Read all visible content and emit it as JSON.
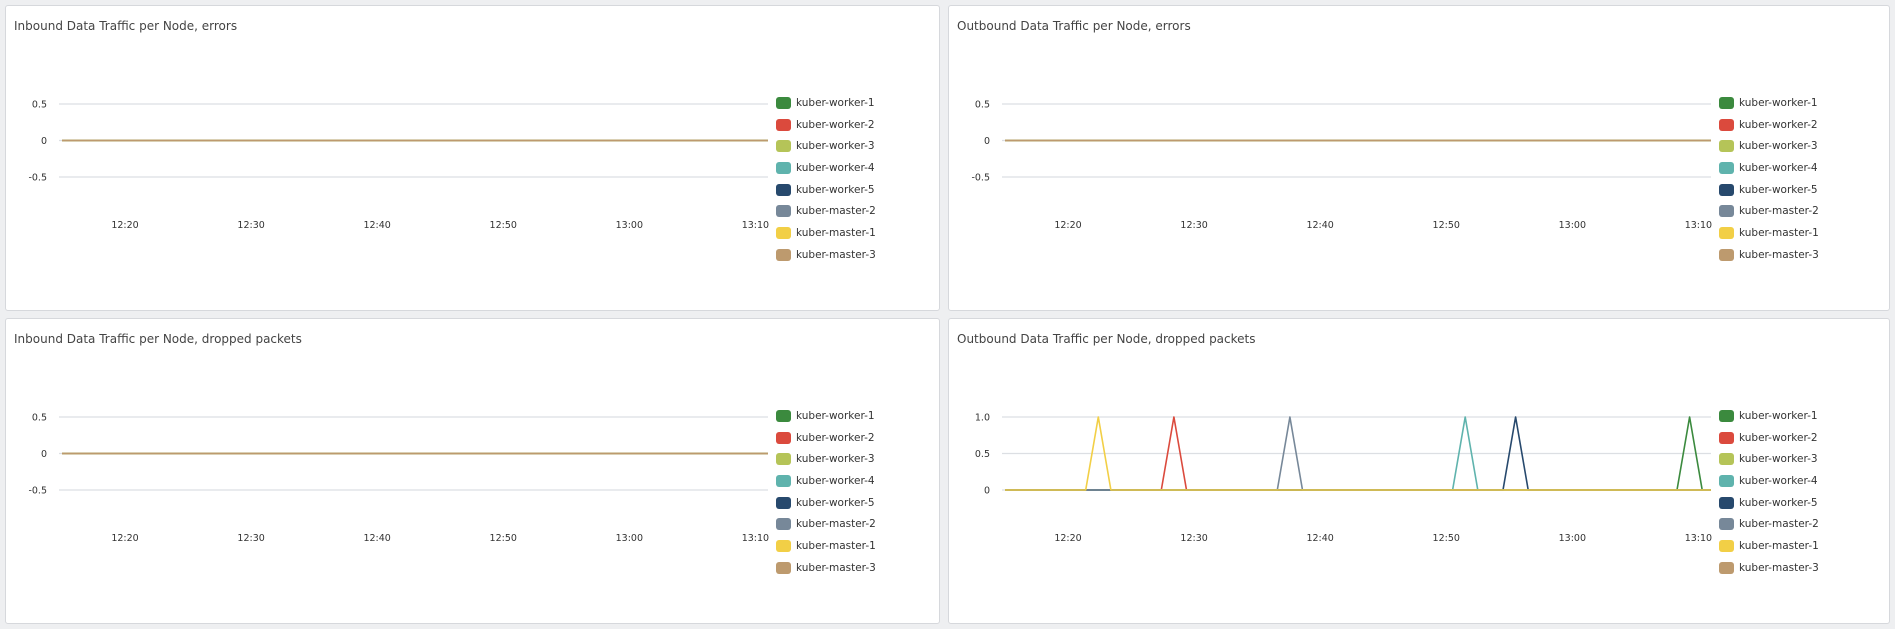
{
  "legend_colors": {
    "kuber-worker-1": "#3b8a3e",
    "kuber-worker-2": "#db4a3d",
    "kuber-worker-3": "#b5c458",
    "kuber-worker-4": "#5fb3ad",
    "kuber-worker-5": "#27496d",
    "kuber-master-2": "#778899",
    "kuber-master-1": "#f2cf46",
    "kuber-master-3": "#bd9a6e"
  },
  "chart_data": [
    {
      "type": "line",
      "title": "Inbound Data Traffic per Node, errors",
      "x_ticks": [
        "12:20",
        "12:30",
        "12:40",
        "12:50",
        "13:00",
        "13:10"
      ],
      "x_tick_minutes": [
        20,
        30,
        40,
        50,
        60,
        70
      ],
      "x_range_minutes": [
        15,
        71
      ],
      "y_ticks": [
        "0.5",
        "0",
        "-0.5"
      ],
      "y_tick_values": [
        0.5,
        0,
        -0.5
      ],
      "ylim": [
        -0.5,
        0.5
      ],
      "grid": true,
      "legend_position": "right",
      "series": [
        {
          "name": "kuber-worker-1",
          "x": [
            15,
            71
          ],
          "values": [
            0,
            0
          ]
        },
        {
          "name": "kuber-worker-2",
          "x": [
            15,
            71
          ],
          "values": [
            0,
            0
          ]
        },
        {
          "name": "kuber-worker-3",
          "x": [
            15,
            71
          ],
          "values": [
            0,
            0
          ]
        },
        {
          "name": "kuber-worker-4",
          "x": [
            15,
            71
          ],
          "values": [
            0,
            0
          ]
        },
        {
          "name": "kuber-worker-5",
          "x": [
            15,
            71
          ],
          "values": [
            0,
            0
          ]
        },
        {
          "name": "kuber-master-2",
          "x": [
            15,
            71
          ],
          "values": [
            0,
            0
          ]
        },
        {
          "name": "kuber-master-1",
          "x": [
            15,
            71
          ],
          "values": [
            0,
            0
          ]
        },
        {
          "name": "kuber-master-3",
          "x": [
            15,
            71
          ],
          "values": [
            0,
            0
          ]
        }
      ]
    },
    {
      "type": "line",
      "title": "Outbound Data Traffic per Node, errors",
      "x_ticks": [
        "12:20",
        "12:30",
        "12:40",
        "12:50",
        "13:00",
        "13:10"
      ],
      "x_tick_minutes": [
        20,
        30,
        40,
        50,
        60,
        70
      ],
      "x_range_minutes": [
        15,
        71
      ],
      "y_ticks": [
        "0.5",
        "0",
        "-0.5"
      ],
      "y_tick_values": [
        0.5,
        0,
        -0.5
      ],
      "ylim": [
        -0.5,
        0.5
      ],
      "grid": true,
      "legend_position": "right",
      "series": [
        {
          "name": "kuber-worker-1",
          "x": [
            15,
            71
          ],
          "values": [
            0,
            0
          ]
        },
        {
          "name": "kuber-worker-2",
          "x": [
            15,
            71
          ],
          "values": [
            0,
            0
          ]
        },
        {
          "name": "kuber-worker-3",
          "x": [
            15,
            71
          ],
          "values": [
            0,
            0
          ]
        },
        {
          "name": "kuber-worker-4",
          "x": [
            15,
            71
          ],
          "values": [
            0,
            0
          ]
        },
        {
          "name": "kuber-worker-5",
          "x": [
            15,
            71
          ],
          "values": [
            0,
            0
          ]
        },
        {
          "name": "kuber-master-2",
          "x": [
            15,
            71
          ],
          "values": [
            0,
            0
          ]
        },
        {
          "name": "kuber-master-1",
          "x": [
            15,
            71
          ],
          "values": [
            0,
            0
          ]
        },
        {
          "name": "kuber-master-3",
          "x": [
            15,
            71
          ],
          "values": [
            0,
            0
          ]
        }
      ]
    },
    {
      "type": "line",
      "title": "Inbound Data Traffic per Node, dropped packets",
      "x_ticks": [
        "12:20",
        "12:30",
        "12:40",
        "12:50",
        "13:00",
        "13:10"
      ],
      "x_tick_minutes": [
        20,
        30,
        40,
        50,
        60,
        70
      ],
      "x_range_minutes": [
        15,
        71
      ],
      "y_ticks": [
        "0.5",
        "0",
        "-0.5"
      ],
      "y_tick_values": [
        0.5,
        0,
        -0.5
      ],
      "ylim": [
        -0.5,
        0.5
      ],
      "grid": true,
      "legend_position": "right",
      "series": [
        {
          "name": "kuber-worker-1",
          "x": [
            15,
            71
          ],
          "values": [
            0,
            0
          ]
        },
        {
          "name": "kuber-worker-2",
          "x": [
            15,
            71
          ],
          "values": [
            0,
            0
          ]
        },
        {
          "name": "kuber-worker-3",
          "x": [
            15,
            71
          ],
          "values": [
            0,
            0
          ]
        },
        {
          "name": "kuber-worker-4",
          "x": [
            15,
            71
          ],
          "values": [
            0,
            0
          ]
        },
        {
          "name": "kuber-worker-5",
          "x": [
            15,
            71
          ],
          "values": [
            0,
            0
          ]
        },
        {
          "name": "kuber-master-2",
          "x": [
            15,
            71
          ],
          "values": [
            0,
            0
          ]
        },
        {
          "name": "kuber-master-1",
          "x": [
            15,
            71
          ],
          "values": [
            0,
            0
          ]
        },
        {
          "name": "kuber-master-3",
          "x": [
            15,
            71
          ],
          "values": [
            0,
            0
          ]
        }
      ]
    },
    {
      "type": "line",
      "title": "Outbound Data Traffic per Node, dropped packets",
      "x_ticks": [
        "12:20",
        "12:30",
        "12:40",
        "12:50",
        "13:00",
        "13:10"
      ],
      "x_tick_minutes": [
        20,
        30,
        40,
        50,
        60,
        70
      ],
      "x_range_minutes": [
        15,
        71
      ],
      "y_ticks": [
        "1.0",
        "0.5",
        "0"
      ],
      "y_tick_values": [
        1,
        0.5,
        0
      ],
      "ylim": [
        0,
        1
      ],
      "grid": true,
      "legend_position": "right",
      "series": [
        {
          "name": "kuber-worker-1",
          "x": [
            15,
            68.3,
            69.3,
            70.3,
            71
          ],
          "values": [
            0,
            0,
            1,
            0,
            0
          ]
        },
        {
          "name": "kuber-worker-2",
          "x": [
            15,
            27.4,
            28.4,
            29.4,
            71
          ],
          "values": [
            0,
            0,
            1,
            0,
            0
          ]
        },
        {
          "name": "kuber-worker-3",
          "x": [
            15,
            71
          ],
          "values": [
            0,
            0
          ]
        },
        {
          "name": "kuber-worker-4",
          "x": [
            15,
            50.5,
            51.5,
            52.5,
            71
          ],
          "values": [
            0,
            0,
            1,
            0,
            0
          ]
        },
        {
          "name": "kuber-worker-5",
          "x": [
            15,
            54.5,
            55.5,
            56.5,
            71
          ],
          "values": [
            0,
            0,
            1,
            0,
            0
          ]
        },
        {
          "name": "kuber-master-2",
          "x": [
            15,
            36.6,
            37.6,
            38.6,
            71
          ],
          "values": [
            0,
            0,
            1,
            0,
            0
          ]
        },
        {
          "name": "kuber-master-1",
          "x": [
            15,
            21.4,
            22.4,
            23.4,
            71
          ],
          "values": [
            0,
            0,
            1,
            0,
            0
          ]
        },
        {
          "name": "kuber-master-3",
          "x": [
            15,
            71
          ],
          "values": [
            0,
            0
          ]
        }
      ]
    }
  ]
}
